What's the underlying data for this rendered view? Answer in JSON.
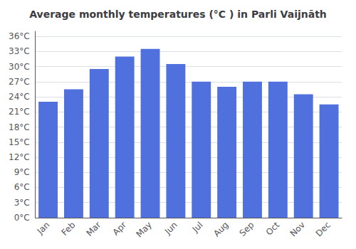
{
  "chart_data": {
    "type": "bar",
    "title": "Average monthly temperatures (°C ) in Parli Vaijnāth",
    "categories": [
      "Jan",
      "Feb",
      "Mar",
      "Apr",
      "May",
      "Jun",
      "Jul",
      "Aug",
      "Sep",
      "Oct",
      "Nov",
      "Dec"
    ],
    "values": [
      23.0,
      25.5,
      29.5,
      32.0,
      33.5,
      30.5,
      27.0,
      26.0,
      27.0,
      27.0,
      24.5,
      22.5
    ],
    "ylim": [
      0,
      37
    ],
    "yticks": [
      {
        "value": 0,
        "label": "0°C"
      },
      {
        "value": 3,
        "label": "3°C"
      },
      {
        "value": 6,
        "label": "6°C"
      },
      {
        "value": 9,
        "label": "9°C"
      },
      {
        "value": 12,
        "label": "12°C"
      },
      {
        "value": 15,
        "label": "15°C"
      },
      {
        "value": 18,
        "label": "18°C"
      },
      {
        "value": 21,
        "label": "21°C"
      },
      {
        "value": 24,
        "label": "24°C"
      },
      {
        "value": 27,
        "label": "27°C"
      },
      {
        "value": 30,
        "label": "30°C"
      },
      {
        "value": 33,
        "label": "33°C"
      },
      {
        "value": 36,
        "label": "36°C"
      }
    ],
    "grid": true
  }
}
